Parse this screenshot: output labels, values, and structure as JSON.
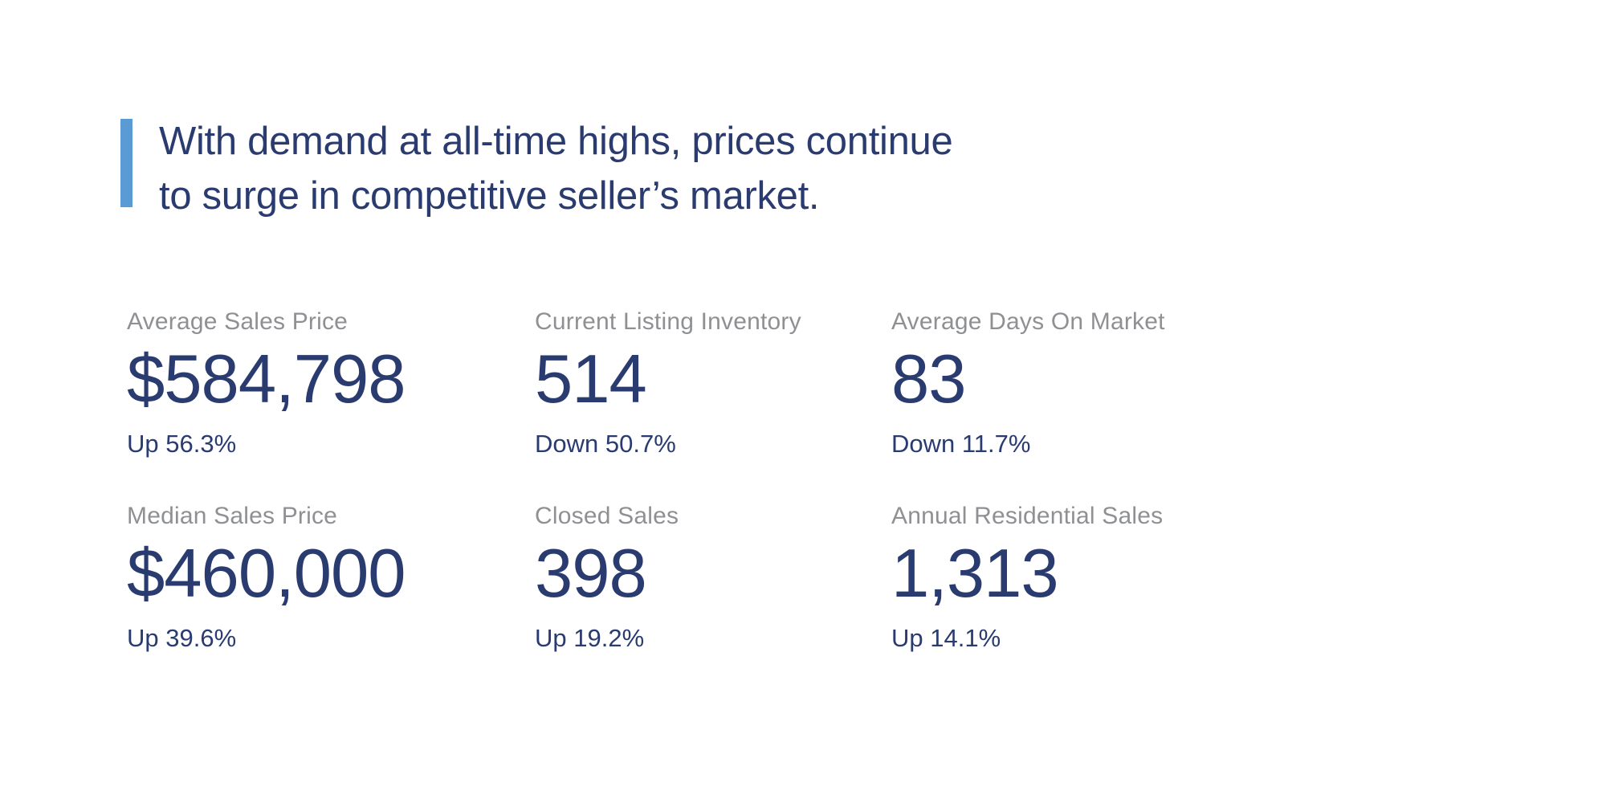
{
  "page": {
    "background_color": "#ffffff",
    "navy_color": "#2a3b70",
    "label_gray_color": "#8f9093"
  },
  "headline": {
    "line1": "With demand at all-time highs, prices continue",
    "line2": "to surge in competitive seller’s market.",
    "accent_bar_color": "#5b9bd5"
  },
  "stats": {
    "items": [
      {
        "label": "Average Sales Price",
        "value": "$584,798",
        "change": "Up 56.3%"
      },
      {
        "label": "Current Listing Inventory",
        "value": "514",
        "change": "Down 50.7%"
      },
      {
        "label": "Average Days On Market",
        "value": "83",
        "change": "Down 11.7%"
      },
      {
        "label": "Median Sales Price",
        "value": "$460,000",
        "change": "Up 39.6%"
      },
      {
        "label": "Closed Sales",
        "value": "398",
        "change": "Up 19.2%"
      },
      {
        "label": "Annual Residential Sales",
        "value": "1,313",
        "change": "Up 14.1%"
      }
    ]
  }
}
